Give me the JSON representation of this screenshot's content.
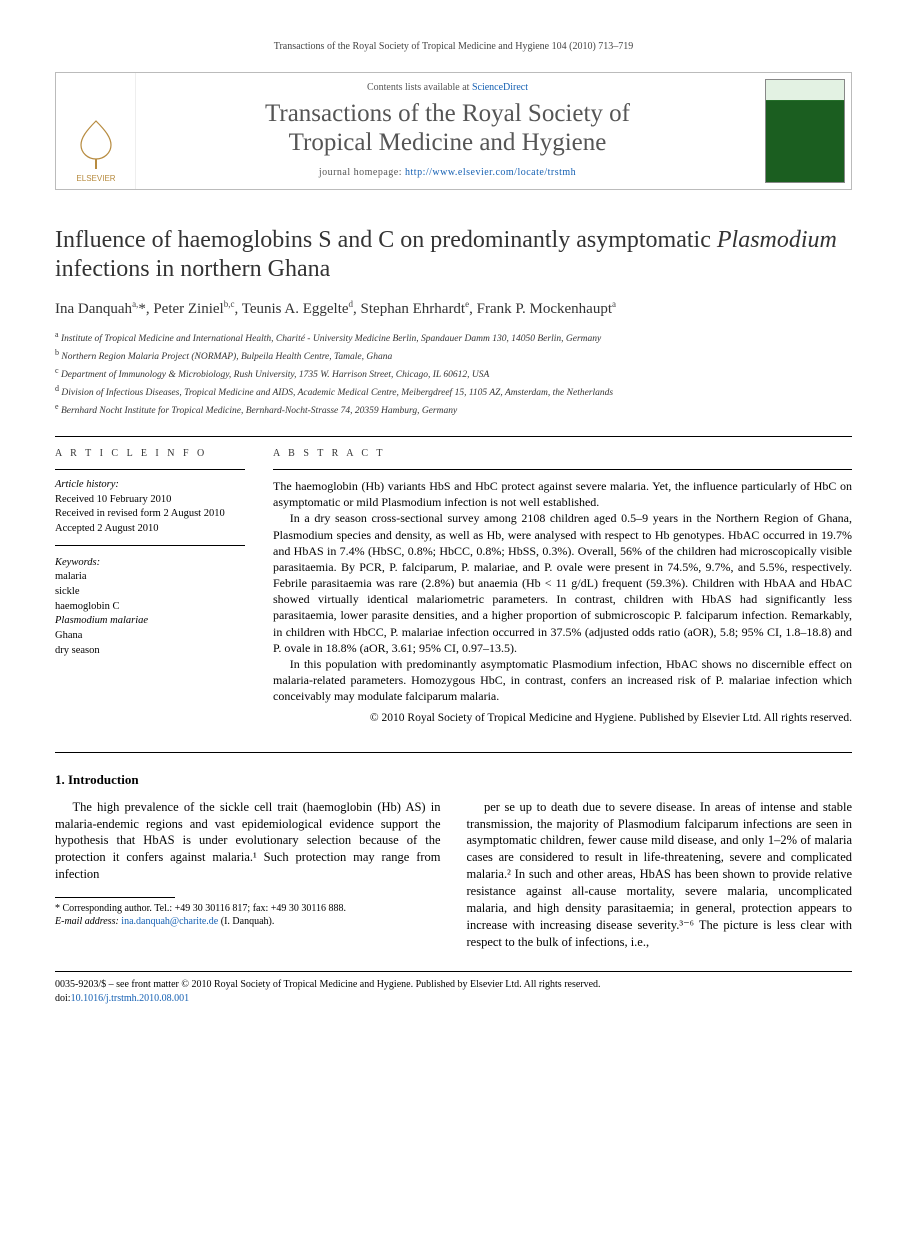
{
  "running_head": "Transactions of the Royal Society of Tropical Medicine and Hygiene 104 (2010) 713–719",
  "masthead": {
    "contents_prefix": "Contents lists available at ",
    "contents_link": "ScienceDirect",
    "journal_line1": "Transactions of the Royal Society of",
    "journal_line2": "Tropical Medicine and Hygiene",
    "homepage_prefix": "journal homepage: ",
    "homepage_url": "http://www.elsevier.com/locate/trstmh",
    "elsevier_label": "ELSEVIER"
  },
  "title_part1": "Influence of haemoglobins S and C on predominantly asymptomatic ",
  "title_ital": "Plasmodium",
  "title_part2": " infections in northern Ghana",
  "authors_html": "Ina Danquah<sup>a,</sup><span class='corr'>*</span>, Peter Ziniel<sup>b,c</sup>, Teunis A. Eggelte<sup>d</sup>, Stephan Ehrhardt<sup>e</sup>, Frank P. Mockenhaupt<sup>a</sup>",
  "affiliations": [
    {
      "sup": "a",
      "text": "Institute of Tropical Medicine and International Health, Charité - University Medicine Berlin, Spandauer Damm 130, 14050 Berlin, Germany"
    },
    {
      "sup": "b",
      "text": "Northern Region Malaria Project (NORMAP), Bulpeila Health Centre, Tamale, Ghana"
    },
    {
      "sup": "c",
      "text": "Department of Immunology & Microbiology, Rush University, 1735 W. Harrison Street, Chicago, IL 60612, USA"
    },
    {
      "sup": "d",
      "text": "Division of Infectious Diseases, Tropical Medicine and AIDS, Academic Medical Centre, Meibergdreef 15, 1105 AZ, Amsterdam, the Netherlands"
    },
    {
      "sup": "e",
      "text": "Bernhard Nocht Institute for Tropical Medicine, Bernhard-Nocht-Strasse 74, 20359 Hamburg, Germany"
    }
  ],
  "article_info": {
    "head": "A R T I C L E   I N F O",
    "history_label": "Article history:",
    "received": "Received 10 February 2010",
    "revised": "Received in revised form 2 August 2010",
    "accepted": "Accepted 2 August 2010",
    "keywords_label": "Keywords:",
    "keywords": [
      "malaria",
      "sickle",
      "haemoglobin C",
      "Plasmodium malariae",
      "Ghana",
      "dry season"
    ]
  },
  "abstract": {
    "head": "A B S T R A C T",
    "p1": "The haemoglobin (Hb) variants HbS and HbC protect against severe malaria. Yet, the influence particularly of HbC on asymptomatic or mild Plasmodium infection is not well established.",
    "p2": "In a dry season cross-sectional survey among 2108 children aged 0.5–9 years in the Northern Region of Ghana, Plasmodium species and density, as well as Hb, were analysed with respect to Hb genotypes. HbAC occurred in 19.7% and HbAS in 7.4% (HbSC, 0.8%; HbCC, 0.8%; HbSS, 0.3%). Overall, 56% of the children had microscopically visible parasitaemia. By PCR, P. falciparum, P. malariae, and P. ovale were present in 74.5%, 9.7%, and 5.5%, respectively. Febrile parasitaemia was rare (2.8%) but anaemia (Hb < 11 g/dL) frequent (59.3%). Children with HbAA and HbAC showed virtually identical malariometric parameters. In contrast, children with HbAS had significantly less parasitaemia, lower parasite densities, and a higher proportion of submicroscopic P. falciparum infection. Remarkably, in children with HbCC, P. malariae infection occurred in 37.5% (adjusted odds ratio (aOR), 5.8; 95% CI, 1.8–18.8) and P. ovale in 18.8% (aOR, 3.61; 95% CI, 0.97–13.5).",
    "p3": "In this population with predominantly asymptomatic Plasmodium infection, HbAC shows no discernible effect on malaria-related parameters. Homozygous HbC, in contrast, confers an increased risk of P. malariae infection which conceivably may modulate falciparum malaria.",
    "copyright": "© 2010 Royal Society of Tropical Medicine and Hygiene. Published by Elsevier Ltd. All rights reserved."
  },
  "section1_head": "1. Introduction",
  "body": {
    "col1_p1": "The high prevalence of the sickle cell trait (haemoglobin (Hb) AS) in malaria-endemic regions and vast epidemiological evidence support the hypothesis that HbAS is under evolutionary selection because of the protection it confers against malaria.¹ Such protection may range from infection",
    "col2_p1": "per se up to death due to severe disease. In areas of intense and stable transmission, the majority of Plasmodium falciparum infections are seen in asymptomatic children, fewer cause mild disease, and only 1–2% of malaria cases are considered to result in life-threatening, severe and complicated malaria.² In such and other areas, HbAS has been shown to provide relative resistance against all-cause mortality, severe malaria, uncomplicated malaria, and high density parasitaemia; in general, protection appears to increase with increasing disease severity.³⁻⁶ The picture is less clear with respect to the bulk of infections, i.e.,"
  },
  "footnote": {
    "corr_label": "* Corresponding author. Tel.: +49 30 30116 817; fax: +49 30 30116 888.",
    "email_label": "E-mail address: ",
    "email": "ina.danquah@charite.de",
    "email_suffix": " (I. Danquah)."
  },
  "footer": {
    "line1": "0035-9203/$ – see front matter © 2010 Royal Society of Tropical Medicine and Hygiene. Published by Elsevier Ltd. All rights reserved.",
    "doi_prefix": "doi:",
    "doi": "10.1016/j.trstmh.2010.08.001"
  },
  "colors": {
    "link": "#1560b3",
    "text": "#000000",
    "muted": "#555555",
    "border": "#bbbbbb"
  }
}
